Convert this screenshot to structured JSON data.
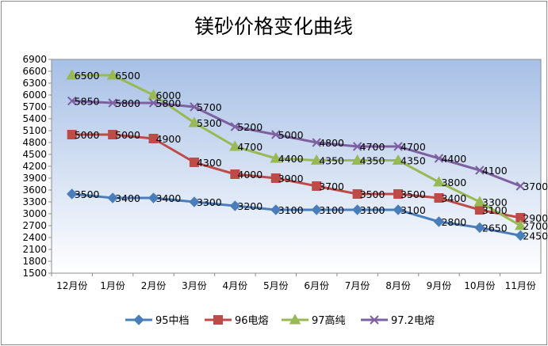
{
  "chart_data": {
    "type": "line",
    "title": "镁砂价格变化曲线",
    "categories": [
      "12月份",
      "1月份",
      "2月份",
      "3月份",
      "4月份",
      "5月份",
      "6月份",
      "7月份",
      "8月份",
      "9月份",
      "10月份",
      "11月份"
    ],
    "ylim": [
      1500,
      6900
    ],
    "ytick_step": 300,
    "grid": false,
    "legend_position": "bottom",
    "series": [
      {
        "name": "95中档",
        "color": "#4a7ebb",
        "marker": "diamond",
        "values": [
          3500,
          3400,
          3400,
          3300,
          3200,
          3100,
          3100,
          3100,
          3100,
          2800,
          2650,
          2450
        ]
      },
      {
        "name": "96电熔",
        "color": "#be4b48",
        "marker": "square",
        "values": [
          5000,
          5000,
          4900,
          4300,
          4000,
          3900,
          3700,
          3500,
          3500,
          3400,
          3100,
          2900
        ]
      },
      {
        "name": "97高纯",
        "color": "#98b954",
        "marker": "triangle",
        "values": [
          6500,
          6500,
          6000,
          5300,
          4700,
          4400,
          4350,
          4350,
          4350,
          3800,
          3300,
          2700
        ]
      },
      {
        "name": "97.2电熔",
        "color": "#7d60a0",
        "marker": "x",
        "values": [
          5850,
          5800,
          5800,
          5700,
          5200,
          5000,
          4800,
          4700,
          4700,
          4400,
          4100,
          3700
        ]
      }
    ]
  }
}
